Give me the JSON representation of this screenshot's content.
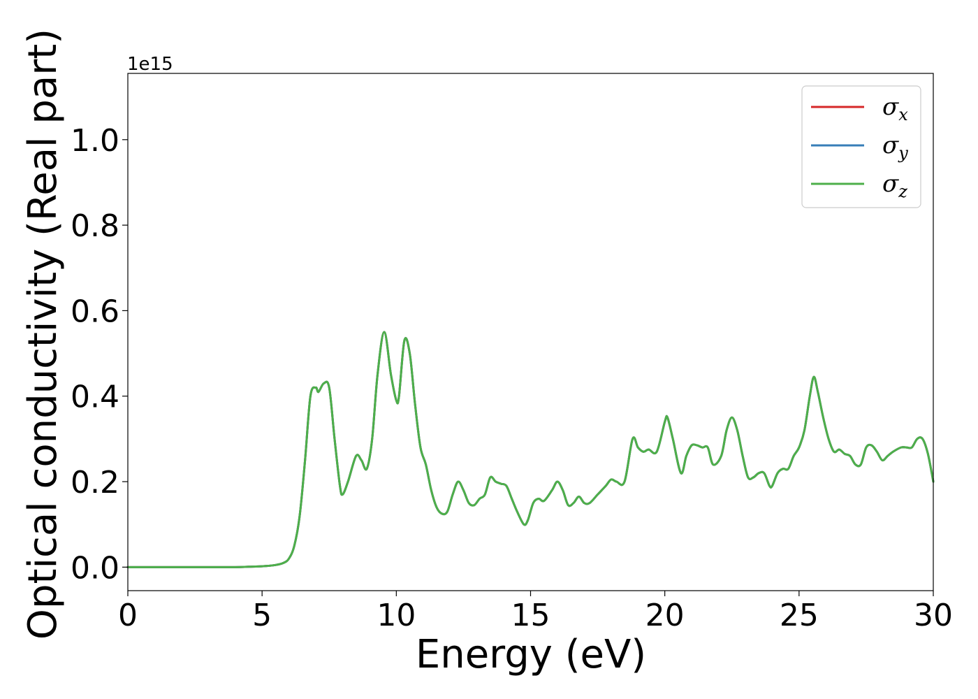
{
  "chart_data": {
    "type": "line",
    "xlabel": "Energy (eV)",
    "ylabel": "Optical conductivity (Real part)",
    "y_offset_label": "1e15",
    "xlim": [
      0,
      30
    ],
    "ylim": [
      -0.055,
      1.155
    ],
    "x_ticks": [
      0,
      5,
      10,
      15,
      20,
      25,
      30
    ],
    "x_tick_labels": [
      "0",
      "5",
      "10",
      "15",
      "20",
      "25",
      "30"
    ],
    "y_ticks": [
      0.0,
      0.2,
      0.4,
      0.6,
      0.8,
      1.0
    ],
    "y_tick_labels": [
      "0.0",
      "0.2",
      "0.4",
      "0.6",
      "0.8",
      "1.0"
    ],
    "grid": false,
    "legend_position": "top-right",
    "x": [
      0,
      1,
      2,
      3,
      4,
      4.5,
      5,
      5.5,
      5.8,
      6.0,
      6.2,
      6.4,
      6.6,
      6.8,
      7.0,
      7.1,
      7.3,
      7.5,
      7.7,
      7.9,
      8.0,
      8.2,
      8.5,
      8.7,
      8.9,
      9.1,
      9.3,
      9.55,
      9.8,
      10.0,
      10.1,
      10.3,
      10.5,
      10.7,
      10.9,
      11.1,
      11.3,
      11.5,
      11.7,
      11.9,
      12.1,
      12.3,
      12.5,
      12.7,
      12.9,
      13.1,
      13.3,
      13.5,
      13.7,
      13.9,
      14.1,
      14.3,
      14.5,
      14.75,
      14.9,
      15.1,
      15.3,
      15.5,
      15.8,
      16.0,
      16.2,
      16.4,
      16.6,
      16.8,
      17.0,
      17.2,
      17.5,
      17.8,
      18.0,
      18.2,
      18.5,
      18.8,
      19.0,
      19.2,
      19.4,
      19.7,
      20.0,
      20.1,
      20.3,
      20.6,
      20.8,
      21.0,
      21.2,
      21.4,
      21.6,
      21.8,
      22.1,
      22.3,
      22.5,
      22.7,
      22.9,
      23.1,
      23.3,
      23.5,
      23.7,
      23.9,
      24.0,
      24.2,
      24.4,
      24.6,
      24.8,
      25.0,
      25.2,
      25.4,
      25.55,
      25.7,
      25.9,
      26.1,
      26.3,
      26.5,
      26.7,
      26.9,
      27.1,
      27.3,
      27.5,
      27.7,
      27.9,
      28.1,
      28.3,
      28.5,
      28.8,
      29.0,
      29.2,
      29.4,
      29.6,
      29.8,
      30.0
    ],
    "series": [
      {
        "name": "σx",
        "label_main": "σ",
        "label_sub": "x",
        "color": "#d62728",
        "values": [
          0,
          0,
          0,
          0,
          0,
          0.001,
          0.002,
          0.005,
          0.01,
          0.02,
          0.05,
          0.12,
          0.25,
          0.4,
          0.42,
          0.41,
          0.43,
          0.42,
          0.3,
          0.19,
          0.17,
          0.2,
          0.26,
          0.25,
          0.23,
          0.3,
          0.45,
          0.55,
          0.45,
          0.39,
          0.4,
          0.53,
          0.5,
          0.38,
          0.28,
          0.24,
          0.18,
          0.14,
          0.125,
          0.13,
          0.17,
          0.2,
          0.18,
          0.15,
          0.145,
          0.16,
          0.17,
          0.21,
          0.2,
          0.195,
          0.19,
          0.16,
          0.13,
          0.1,
          0.11,
          0.15,
          0.16,
          0.155,
          0.18,
          0.2,
          0.18,
          0.145,
          0.15,
          0.165,
          0.15,
          0.15,
          0.17,
          0.19,
          0.205,
          0.2,
          0.2,
          0.3,
          0.28,
          0.27,
          0.275,
          0.27,
          0.34,
          0.35,
          0.3,
          0.22,
          0.26,
          0.285,
          0.285,
          0.28,
          0.28,
          0.24,
          0.26,
          0.32,
          0.35,
          0.32,
          0.26,
          0.21,
          0.21,
          0.22,
          0.22,
          0.19,
          0.19,
          0.22,
          0.23,
          0.23,
          0.26,
          0.28,
          0.32,
          0.4,
          0.445,
          0.41,
          0.35,
          0.3,
          0.27,
          0.275,
          0.265,
          0.26,
          0.24,
          0.24,
          0.28,
          0.285,
          0.27,
          0.25,
          0.26,
          0.27,
          0.28,
          0.28,
          0.28,
          0.3,
          0.3,
          0.265,
          0.2
        ]
      },
      {
        "name": "σy",
        "label_main": "σ",
        "label_sub": "y",
        "color": "#377eb8",
        "values": [
          0,
          0,
          0,
          0,
          0,
          0.001,
          0.002,
          0.005,
          0.01,
          0.02,
          0.05,
          0.12,
          0.25,
          0.4,
          0.42,
          0.41,
          0.43,
          0.42,
          0.3,
          0.19,
          0.17,
          0.2,
          0.26,
          0.25,
          0.23,
          0.3,
          0.45,
          0.55,
          0.45,
          0.39,
          0.4,
          0.53,
          0.5,
          0.38,
          0.28,
          0.24,
          0.18,
          0.14,
          0.125,
          0.13,
          0.17,
          0.2,
          0.18,
          0.15,
          0.145,
          0.16,
          0.17,
          0.21,
          0.2,
          0.195,
          0.19,
          0.16,
          0.13,
          0.1,
          0.11,
          0.15,
          0.16,
          0.155,
          0.18,
          0.2,
          0.18,
          0.145,
          0.15,
          0.165,
          0.15,
          0.15,
          0.17,
          0.19,
          0.205,
          0.2,
          0.2,
          0.3,
          0.28,
          0.27,
          0.275,
          0.27,
          0.34,
          0.35,
          0.3,
          0.22,
          0.26,
          0.285,
          0.285,
          0.28,
          0.28,
          0.24,
          0.26,
          0.32,
          0.35,
          0.32,
          0.26,
          0.21,
          0.21,
          0.22,
          0.22,
          0.19,
          0.19,
          0.22,
          0.23,
          0.23,
          0.26,
          0.28,
          0.32,
          0.4,
          0.445,
          0.41,
          0.35,
          0.3,
          0.27,
          0.275,
          0.265,
          0.26,
          0.24,
          0.24,
          0.28,
          0.285,
          0.27,
          0.25,
          0.26,
          0.27,
          0.28,
          0.28,
          0.28,
          0.3,
          0.3,
          0.265,
          0.2
        ]
      },
      {
        "name": "σz",
        "label_main": "σ",
        "label_sub": "z",
        "color": "#4daf4a",
        "values": [
          0,
          0,
          0,
          0,
          0,
          0.001,
          0.002,
          0.005,
          0.01,
          0.02,
          0.05,
          0.12,
          0.25,
          0.4,
          0.42,
          0.41,
          0.43,
          0.42,
          0.3,
          0.19,
          0.17,
          0.2,
          0.26,
          0.25,
          0.23,
          0.3,
          0.45,
          0.55,
          0.45,
          0.39,
          0.4,
          0.53,
          0.5,
          0.38,
          0.28,
          0.24,
          0.18,
          0.14,
          0.125,
          0.13,
          0.17,
          0.2,
          0.18,
          0.15,
          0.145,
          0.16,
          0.17,
          0.21,
          0.2,
          0.195,
          0.19,
          0.16,
          0.13,
          0.1,
          0.11,
          0.15,
          0.16,
          0.155,
          0.18,
          0.2,
          0.18,
          0.145,
          0.15,
          0.165,
          0.15,
          0.15,
          0.17,
          0.19,
          0.205,
          0.2,
          0.2,
          0.3,
          0.28,
          0.27,
          0.275,
          0.27,
          0.34,
          0.35,
          0.3,
          0.22,
          0.26,
          0.285,
          0.285,
          0.28,
          0.28,
          0.24,
          0.26,
          0.32,
          0.35,
          0.32,
          0.26,
          0.21,
          0.21,
          0.22,
          0.22,
          0.19,
          0.19,
          0.22,
          0.23,
          0.23,
          0.26,
          0.28,
          0.32,
          0.4,
          0.445,
          0.41,
          0.35,
          0.3,
          0.27,
          0.275,
          0.265,
          0.26,
          0.24,
          0.24,
          0.28,
          0.285,
          0.27,
          0.25,
          0.26,
          0.27,
          0.28,
          0.28,
          0.28,
          0.3,
          0.3,
          0.265,
          0.2
        ]
      }
    ]
  }
}
